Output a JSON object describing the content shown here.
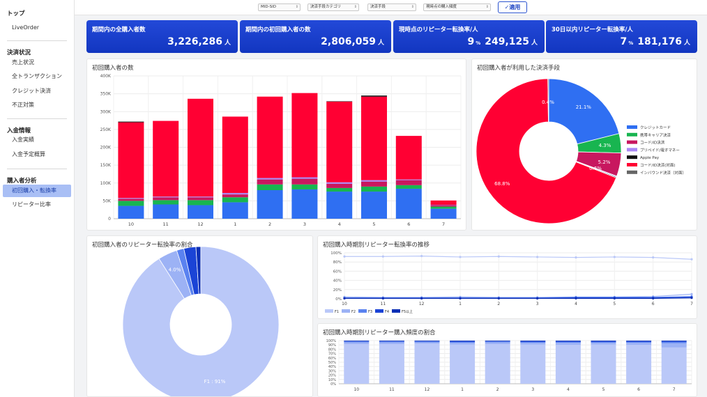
{
  "sidebar": {
    "sections": [
      {
        "label": "トップ",
        "items": [
          {
            "label": "LiveOrder"
          }
        ]
      },
      {
        "label": "決済状況",
        "items": [
          {
            "label": "売上状況"
          },
          {
            "label": "全トランザクション"
          },
          {
            "label": "クレジット決済"
          },
          {
            "label": "不正対策"
          }
        ]
      },
      {
        "label": "入金情報",
        "items": [
          {
            "label": "入金実績"
          },
          {
            "label": "入金予定概算"
          }
        ]
      },
      {
        "label": "購入者分析",
        "items": [
          {
            "label": "初回購入・転換率",
            "active": true
          },
          {
            "label": "リピーター比率"
          }
        ]
      }
    ]
  },
  "filters": {
    "mid": "MID-SID",
    "category": "決済手段カテゴリ",
    "method": "決済手段",
    "frequency": "現時点の購入頻度",
    "apply_label": "✓適用"
  },
  "kpis": [
    {
      "title": "期間内の全購入者数",
      "value": "3,226,286",
      "unit": "人"
    },
    {
      "title": "期間内の初回購入者の数",
      "value": "2,806,059",
      "unit": "人"
    },
    {
      "title": "現時点のリピーター転換率/人",
      "pct": "9",
      "pct_unit": "%",
      "value": "249,125",
      "unit": "人"
    },
    {
      "title": "30日以内リピーター転換率/人",
      "pct": "7",
      "pct_unit": "%",
      "value": "181,176",
      "unit": "人"
    }
  ],
  "panels": {
    "first_buyers_title": "初回購入者の数",
    "payment_methods_title": "初回購入者が利用した決済手段",
    "repeater_ratio_title": "初回購入者のリピーター転換率の割合",
    "trend_title": "初回購入時期別リピーター転換率の推移",
    "frequency_title": "初回購入時期別リピーター購入頻度の割合"
  },
  "chart_data": [
    {
      "type": "bar",
      "stacked": true,
      "title": "初回購入者の数",
      "categories": [
        "10",
        "11",
        "12",
        "1",
        "2",
        "3",
        "4",
        "5",
        "6",
        "7"
      ],
      "yticks": [
        "0",
        "50K",
        "100K",
        "150K",
        "200K",
        "250K",
        "300K",
        "350K",
        "400K"
      ],
      "ylim": [
        0,
        400000
      ],
      "series": [
        {
          "color": "#2f6ff2",
          "values": [
            36000,
            40000,
            38000,
            46000,
            80000,
            82000,
            76000,
            76000,
            84000,
            28000
          ]
        },
        {
          "color": "#18b550",
          "values": [
            14000,
            12000,
            14000,
            14000,
            16000,
            14000,
            10000,
            14000,
            10000,
            6000
          ]
        },
        {
          "color": "#c8175f",
          "values": [
            6000,
            8000,
            8000,
            8000,
            14000,
            16000,
            12000,
            14000,
            14000,
            4000
          ]
        },
        {
          "color": "#a987f5",
          "values": [
            2000,
            2000,
            2000,
            4000,
            4000,
            4000,
            4000,
            4000,
            2000,
            1000
          ]
        },
        {
          "color": "#ff0033",
          "values": [
            212000,
            212000,
            274000,
            214000,
            228000,
            236000,
            226000,
            234000,
            122000,
            12000
          ]
        },
        {
          "color": "#111111",
          "values": [
            2000,
            0,
            0,
            0,
            0,
            0,
            1000,
            3000,
            0,
            0
          ]
        }
      ]
    },
    {
      "type": "pie",
      "donut": true,
      "title": "初回購入者が利用した決済手段",
      "legend_position": "right",
      "slices": [
        {
          "name": "クレジットカード",
          "value": 21.1,
          "label": "21.1%",
          "color": "#2f6ff2"
        },
        {
          "name": "携帯キャリア決済",
          "value": 4.3,
          "label": "4.3%",
          "color": "#18b550"
        },
        {
          "name": "コード/ID決済",
          "value": 5.2,
          "label": "5.2%",
          "color": "#c8175f"
        },
        {
          "name": "プリペイド/電子マネー",
          "value": 0.2,
          "label": "",
          "color": "#a987f5"
        },
        {
          "name": "Apple Pay",
          "value": 0.2,
          "label": "",
          "color": "#111111"
        },
        {
          "name": "コード/ID決済(対面)",
          "value": 68.8,
          "label": "68.8%",
          "color": "#ff0033"
        },
        {
          "name": "インバウンド決済（対面）",
          "value": 0.2,
          "label": "",
          "color": "#666666"
        }
      ],
      "annotations": [
        "0.4%",
        "0.6%"
      ]
    },
    {
      "type": "pie",
      "donut": true,
      "title": "初回購入者のリピーター転換率の割合",
      "slices": [
        {
          "name": "F1",
          "value": 91,
          "label": "F1 : 91%",
          "color": "#bac8f8"
        },
        {
          "name": "F2",
          "value": 4.0,
          "label": "4.0%",
          "color": "#9cb2f5"
        },
        {
          "name": "F3",
          "value": 1.5,
          "label": "",
          "color": "#5a82f0"
        },
        {
          "name": "F4",
          "value": 2.5,
          "label": "",
          "color": "#1b44d6"
        },
        {
          "name": "F5以上",
          "value": 1.0,
          "label": "",
          "color": "#0c2fb5"
        }
      ]
    },
    {
      "type": "line",
      "title": "初回購入時期別リピーター転換率の推移",
      "categories": [
        "10",
        "11",
        "12",
        "1",
        "2",
        "3",
        "4",
        "5",
        "6",
        "7"
      ],
      "yticks": [
        "0%",
        "20%",
        "40%",
        "60%",
        "80%",
        "100%"
      ],
      "ylim": [
        0,
        100
      ],
      "legend_position": "bottom-left",
      "series": [
        {
          "name": "F1",
          "color": "#bac8f8",
          "values": [
            92,
            92,
            93,
            91,
            92,
            91,
            90,
            91,
            90,
            86
          ]
        },
        {
          "name": "F2",
          "color": "#9cb2f5",
          "values": [
            4,
            3,
            3,
            4,
            3,
            3,
            4,
            4,
            5,
            10
          ]
        },
        {
          "name": "F3",
          "color": "#5a82f0",
          "values": [
            2,
            2,
            2,
            2,
            2,
            2,
            3,
            3,
            3,
            5
          ]
        },
        {
          "name": "F4",
          "color": "#1b44d6",
          "values": [
            1,
            1,
            1,
            1,
            1,
            1,
            2,
            2,
            2,
            3
          ]
        },
        {
          "name": "F5以上",
          "color": "#0c2fb5",
          "values": [
            1,
            1,
            1,
            1,
            1,
            1,
            1,
            1,
            1,
            2
          ]
        }
      ]
    },
    {
      "type": "bar",
      "stacked": true,
      "title": "初回購入時期別リピーター購入頻度の割合",
      "categories": [
        "10",
        "11",
        "12",
        "1",
        "2",
        "3",
        "4",
        "5",
        "6",
        "7"
      ],
      "yticks": [
        "0%",
        "10%",
        "20%",
        "30%",
        "40%",
        "50%",
        "60%",
        "70%",
        "80%",
        "90%",
        "100%"
      ],
      "ylim": [
        0,
        100
      ],
      "series": [
        {
          "name": "F1",
          "color": "#bac8f8",
          "values": [
            92,
            92,
            93,
            91,
            92,
            91,
            90,
            91,
            90,
            84
          ]
        },
        {
          "name": "F2",
          "color": "#9cb2f5",
          "values": [
            4,
            4,
            3,
            4,
            4,
            4,
            5,
            4,
            5,
            10
          ]
        },
        {
          "name": "F3",
          "color": "#5a82f0",
          "values": [
            2,
            2,
            2,
            2,
            2,
            2,
            2,
            2,
            2,
            3
          ]
        },
        {
          "name": "F4",
          "color": "#1b44d6",
          "values": [
            1,
            1,
            1,
            2,
            1,
            2,
            2,
            2,
            2,
            2
          ]
        },
        {
          "name": "F5以上",
          "color": "#0c2fb5",
          "values": [
            1,
            1,
            1,
            1,
            1,
            1,
            1,
            1,
            1,
            1
          ]
        }
      ]
    }
  ]
}
